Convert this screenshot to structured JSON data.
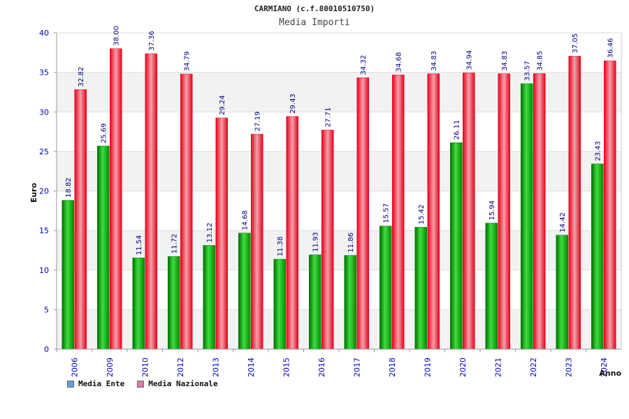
{
  "header": {
    "title": "CARMIANO (c.f.80010510750)",
    "subtitle": "Media Importi"
  },
  "legend": {
    "ente_label": "Media Ente",
    "nazionale_label": "Media Nazionale",
    "ente_swatch_color": "#5aa0e8",
    "nazionale_swatch_color": "#e07ab0"
  },
  "chart_data": {
    "type": "bar",
    "title": "Media Importi",
    "xlabel": "Anno",
    "ylabel": "Euro",
    "ylim": [
      0,
      40
    ],
    "yticks": [
      0,
      5,
      10,
      15,
      20,
      25,
      30,
      35,
      40
    ],
    "grid": true,
    "categories": [
      "2006",
      "2009",
      "2010",
      "2012",
      "2013",
      "2014",
      "2015",
      "2016",
      "2017",
      "2018",
      "2019",
      "2020",
      "2021",
      "2022",
      "2023",
      "2024"
    ],
    "series": [
      {
        "name": "Media Ente",
        "color": "#00a000",
        "values": [
          18.82,
          25.69,
          11.54,
          11.72,
          13.12,
          14.68,
          11.38,
          11.93,
          11.86,
          15.57,
          15.42,
          26.11,
          15.94,
          33.57,
          14.42,
          23.43
        ],
        "labels": [
          "18.82",
          "25.69",
          "11.54",
          "11.72",
          "13.12",
          "14.68",
          "11.38",
          "11.93",
          "11.86",
          "15.57",
          "15.42",
          "26.11",
          "15.94",
          "33.57",
          "14.42",
          "23.43"
        ]
      },
      {
        "name": "Media Nazionale",
        "color": "#e8001c",
        "values": [
          32.82,
          38.0,
          37.36,
          34.79,
          29.24,
          27.19,
          29.43,
          27.71,
          34.32,
          34.68,
          34.83,
          34.94,
          34.83,
          34.85,
          37.05,
          36.46
        ],
        "labels": [
          "32.82",
          "38.00",
          "37.36",
          "34.79",
          "29.24",
          "27.19",
          "29.43",
          "27.71",
          "34.32",
          "34.68",
          "34.83",
          "34.94",
          "34.83",
          "34.85",
          "37.05",
          "36.46"
        ]
      }
    ]
  }
}
